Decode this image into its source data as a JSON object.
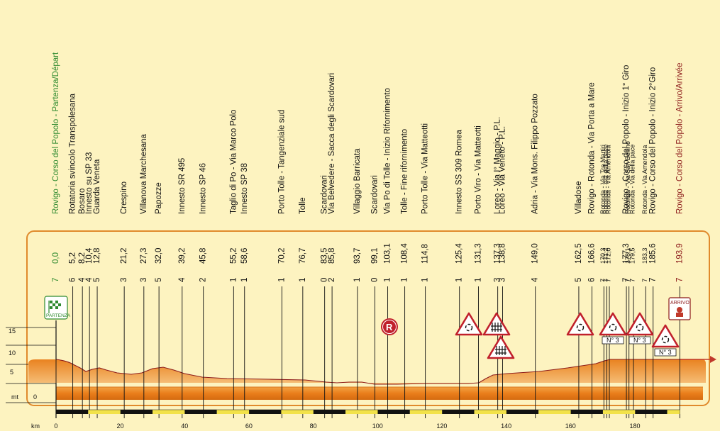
{
  "colors": {
    "background": "#fdf3c0",
    "frame": "#e08a2c",
    "profile_fill": "#ec8a25",
    "start": "#2f8a2f",
    "finish": "#8c1a1a"
  },
  "axis": {
    "km_label": "km",
    "mt_label": "mt",
    "mt_ticks": [
      "15",
      "10",
      "5",
      "0"
    ],
    "km_ticks": [
      "0",
      "20",
      "40",
      "60",
      "80",
      "100",
      "120",
      "140",
      "160",
      "180"
    ]
  },
  "waypoints": [
    {
      "name": "Rovigo - Corso del Popolo - Partenza/Départ",
      "km": "0,0",
      "code": "7",
      "style": "start"
    },
    {
      "name": "Rotatoria svincolo Transpolesana",
      "km": "5,2",
      "code": "6"
    },
    {
      "name": "Bosaro",
      "km": "8,2",
      "code": "4"
    },
    {
      "name": "Innesto su SP 33",
      "km": "10,4",
      "code": "4"
    },
    {
      "name": "Guarda Veneta",
      "km": "12,8",
      "code": "5"
    },
    {
      "name": "Crespino",
      "km": "21,2",
      "code": "3"
    },
    {
      "name": "Villanova Marchesana",
      "km": "27,3",
      "code": "3"
    },
    {
      "name": "Papozze",
      "km": "32,0",
      "code": "5"
    },
    {
      "name": "Innesto SR 495",
      "km": "39,2",
      "code": "4"
    },
    {
      "name": "Innesto SP 46",
      "km": "45,8",
      "code": "2"
    },
    {
      "name": "Taglio di Po - Via Marco Polo",
      "km": "55,2",
      "code": "1"
    },
    {
      "name": "Innesto SP 38",
      "km": "58,6",
      "code": "1"
    },
    {
      "name": "Porto Tolle - Tangenziale sud",
      "km": "70,2",
      "code": "1"
    },
    {
      "name": "Tolle",
      "km": "76,7",
      "code": "1"
    },
    {
      "name": "Scardovari",
      "km": "83,5",
      "code": "0"
    },
    {
      "name": "Via Belvedere - Sacca degli Scardovari",
      "km": "85,8",
      "code": "2"
    },
    {
      "name": "Villaggio Barricata",
      "km": "93,7",
      "code": "1"
    },
    {
      "name": "Scardovari",
      "km": "99,1",
      "code": "0"
    },
    {
      "name": "Via Po di Tolle - Inizio Rifornimento",
      "km": "103,1",
      "code": "1"
    },
    {
      "name": "Tolle - Fine rifornimento",
      "km": "108,4",
      "code": "1"
    },
    {
      "name": "Porto Tolle - Via Matteotti",
      "km": "114,8",
      "code": "1"
    },
    {
      "name": "Innesto SS 309 Romea",
      "km": "125,4",
      "code": "1"
    },
    {
      "name": "Porto Viro - Via Matteotti",
      "km": "131,3",
      "code": "1"
    },
    {
      "name": "Loreo - Via I° Maggio - P.L.",
      "km": "137,3",
      "code": "3"
    },
    {
      "name": "Loreo - Via Veneto - P.L.",
      "km": "138,8",
      "code": "3"
    },
    {
      "name": "Adria - Via Mons. Filippo Pozzato",
      "km": "149,0",
      "code": "4"
    },
    {
      "name": "Villadose",
      "km": "162,5",
      "code": "5"
    },
    {
      "name": "Rovigo - Rotonda - Via Porta a Mare",
      "km": "166,6",
      "code": "6"
    },
    {
      "name": "Rotonda - Via Tre Martiri",
      "km": "170,3",
      "code": "7",
      "style": "small"
    },
    {
      "name": "Rotonda - Via della pace",
      "km": "171,2",
      "code": "7",
      "style": "small"
    },
    {
      "name": "Rotonda - Via Amendola",
      "km": "172,0",
      "code": "7",
      "style": "small"
    },
    {
      "name": "Rovigo - Corso del Popolo - Inizio 1° Giro",
      "km": "177,3",
      "code": "7"
    },
    {
      "name": "Rotonda - Via San Bellino",
      "km": "178,1",
      "code": "7",
      "style": "small"
    },
    {
      "name": "Rotonda - Via della pace",
      "km": "179,5",
      "code": "7",
      "style": "small"
    },
    {
      "name": "Rotonda - Via Amendola",
      "km": "183,3",
      "code": "7",
      "style": "small"
    },
    {
      "name": "Rovigo - Corso del Popolo - Inizio 2°Giro",
      "km": "185,6",
      "code": "7"
    },
    {
      "name": "Rovigo - Corso del Popolo - Arrivo/Arrivée",
      "km": "193,9",
      "code": "7",
      "style": "finish"
    }
  ],
  "markers": {
    "partenza": "PARTENZA",
    "arrivo": "ARRIVO",
    "refuel": "R",
    "lap": "N° 3"
  }
}
